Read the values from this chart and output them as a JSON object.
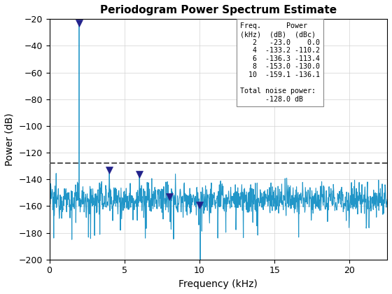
{
  "title": "Periodogram Power Spectrum Estimate",
  "xlabel": "Frequency (kHz)",
  "ylabel": "Power (dB)",
  "xlim": [
    0,
    22.5
  ],
  "ylim": [
    -200,
    -20
  ],
  "yticks": [
    -200,
    -180,
    -160,
    -140,
    -120,
    -100,
    -80,
    -60,
    -40,
    -20
  ],
  "xticks": [
    0,
    5,
    10,
    15,
    20
  ],
  "noise_floor_db": -128.0,
  "line_color": "#2196C8",
  "marker_color": "#22228B",
  "dashed_color": "#555555",
  "spike_freqs": [
    2,
    4,
    6,
    8,
    10
  ],
  "spike_powers": [
    -23.0,
    -133.2,
    -136.3,
    -153.0,
    -159.1
  ],
  "noise_mean": -155,
  "noise_std": 6,
  "seed": 12345
}
